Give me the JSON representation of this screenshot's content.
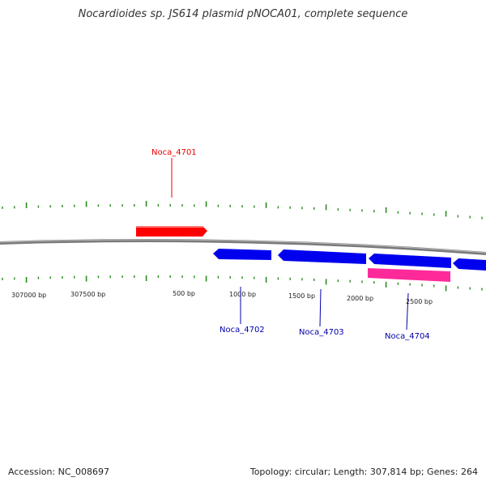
{
  "title": "Nocardioides sp. JS614 plasmid pNOCA01, complete sequence",
  "footer": {
    "accession": "Accession: NC_008697",
    "summary": "Topology: circular; Length: 307,814 bp; Genes: 264"
  },
  "colors": {
    "backbone": "#888888",
    "tick": "#2a8a1f",
    "forward_gene": "#ff0000",
    "reverse_gene": "#0000ee",
    "rna_gene": "#ff2a9a"
  },
  "tick_labels": [
    "307000 bp",
    "307500 bp",
    "500 bp",
    "1000 bp",
    "1500 bp",
    "2000 bp",
    "2500 bp"
  ],
  "gene_labels": [
    {
      "name": "Noca_4701",
      "color": "#ee0000"
    },
    {
      "name": "Noca_4702",
      "color": "#0000aa"
    },
    {
      "name": "Noca_4703",
      "color": "#0000aa"
    },
    {
      "name": "Noca_4704",
      "color": "#0000aa"
    }
  ]
}
